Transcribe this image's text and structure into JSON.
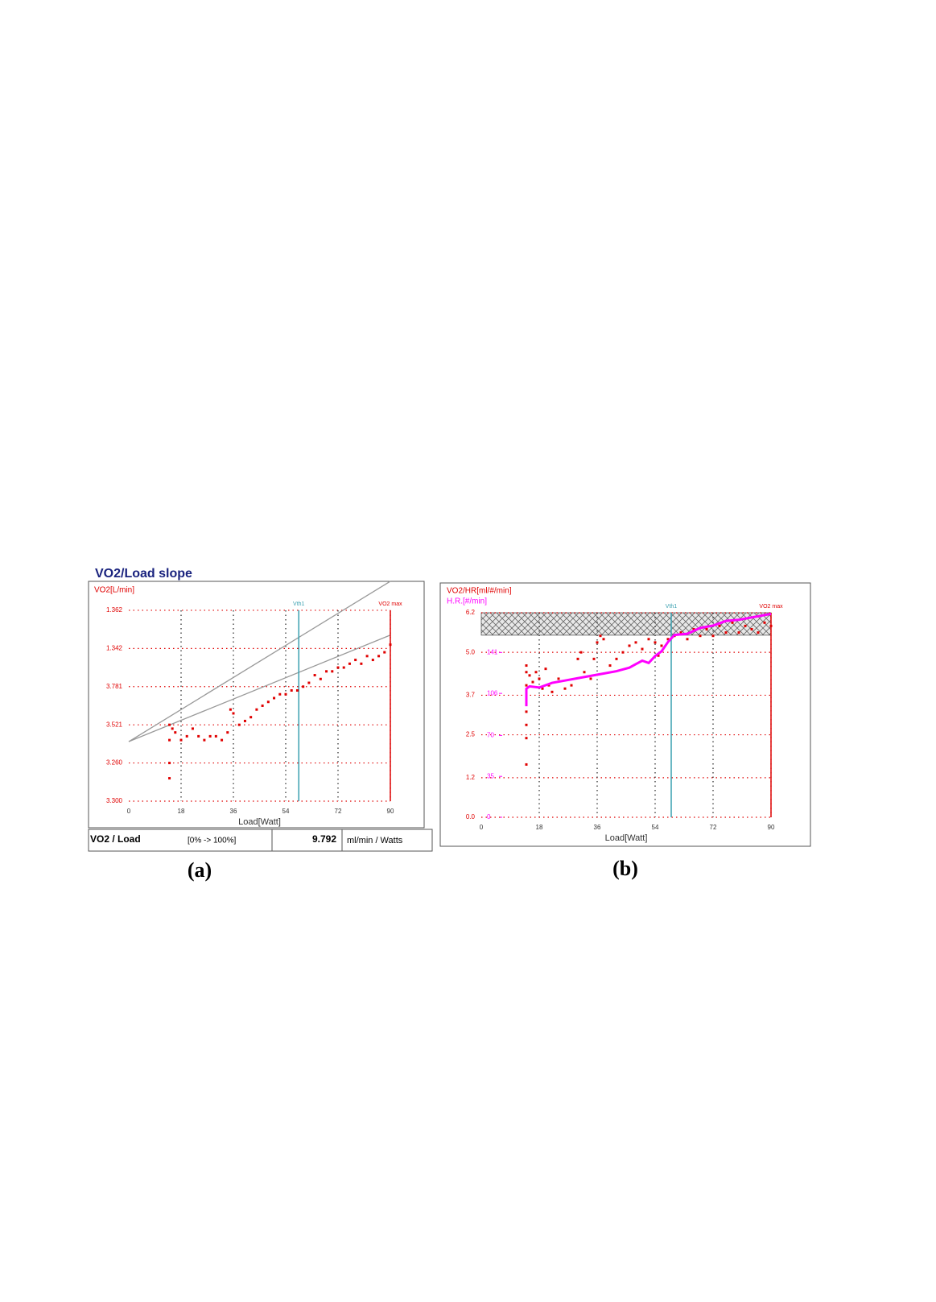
{
  "chart_data": [
    {
      "type": "scatter",
      "title": "VO2/Load slope",
      "y_label": "VO2[L/min]",
      "x_label": "Load[Watt]",
      "caption": "(a)",
      "xlim": [
        0,
        90
      ],
      "xticks": [
        0,
        18,
        36,
        54,
        72,
        90
      ],
      "ylim": [
        0,
        5.8
      ],
      "yticks": [
        {
          "value": 0,
          "label": "3.300"
        },
        {
          "value": 1,
          "label": "3.260"
        },
        {
          "value": 2,
          "label": "3.521"
        },
        {
          "value": 3,
          "label": "3.781"
        },
        {
          "value": 4,
          "label": "1.342"
        },
        {
          "value": 5,
          "label": "1.362"
        }
      ],
      "grid": true,
      "markers": [
        {
          "label": "Vth1",
          "x": 58.5,
          "color": "#3aa0b0"
        },
        {
          "label": "VO2 max",
          "x": 90,
          "color": "#e00000"
        }
      ],
      "reference_lines": [
        {
          "color": "#999999",
          "x": [
            0,
            90
          ],
          "values": [
            1.56,
            5.76
          ]
        },
        {
          "color": "#999999",
          "x": [
            0,
            90
          ],
          "values": [
            1.56,
            4.35
          ]
        }
      ],
      "series": [
        {
          "color": "#e00000",
          "x": [
            14,
            14,
            14,
            14,
            15,
            16,
            18,
            20,
            22,
            24,
            26,
            28,
            30,
            32,
            34,
            35,
            36,
            38,
            40,
            42,
            44,
            46,
            48,
            50,
            52,
            54,
            56,
            58,
            60,
            62,
            64,
            66,
            68,
            70,
            72,
            74,
            76,
            78,
            80,
            82,
            84,
            86,
            88,
            90
          ],
          "values": [
            0.6,
            1.0,
            1.6,
            2.0,
            1.9,
            1.8,
            1.6,
            1.7,
            1.9,
            1.7,
            1.6,
            1.7,
            1.7,
            1.6,
            1.8,
            2.4,
            2.3,
            2.0,
            2.1,
            2.2,
            2.4,
            2.5,
            2.6,
            2.7,
            2.8,
            2.8,
            2.9,
            2.9,
            3.0,
            3.1,
            3.3,
            3.2,
            3.4,
            3.4,
            3.5,
            3.5,
            3.6,
            3.7,
            3.6,
            3.8,
            3.7,
            3.8,
            3.9,
            4.1
          ]
        }
      ],
      "summary": {
        "label": "VO2 / Load",
        "range": "[0% -> 100%]",
        "value": "9.792",
        "unit": "ml/min / Watts"
      }
    },
    {
      "type": "scatter",
      "y_label": "VO2/HR[ml/#/min]",
      "y2_label": "H.R.[#/min]",
      "x_label": "Load[Watt]",
      "caption": "(b)",
      "xlim": [
        0,
        90
      ],
      "xticks": [
        0,
        18,
        36,
        54,
        72,
        90
      ],
      "ylim": [
        0,
        6.2
      ],
      "yticks": [
        {
          "value": 0,
          "label": "0.0"
        },
        1.2,
        2.5,
        3.7,
        {
          "value": 5,
          "label": "5.0"
        },
        6.2
      ],
      "y2lim": [
        0,
        175
      ],
      "y2ticks": [
        0,
        35,
        70,
        106,
        141
      ],
      "grid": true,
      "band": [
        5.52,
        6.2
      ],
      "markers": [
        {
          "label": "Vth1",
          "x": 59,
          "color": "#3aa0b0"
        },
        {
          "label": "VO2 max",
          "x": 90,
          "color": "#e00000"
        }
      ],
      "series": [
        {
          "color": "#e00000",
          "x": [
            14,
            14,
            14,
            14,
            14,
            14,
            14,
            14,
            15,
            16,
            17,
            18,
            19,
            20,
            21,
            22,
            24,
            26,
            28,
            30,
            31,
            32,
            34,
            35,
            36,
            37,
            38,
            40,
            42,
            44,
            46,
            48,
            50,
            52,
            54,
            55,
            56,
            58,
            60,
            62,
            64,
            66,
            68,
            70,
            72,
            74,
            76,
            78,
            80,
            82,
            84,
            86,
            88,
            90
          ],
          "values": [
            1.6,
            2.4,
            2.8,
            3.2,
            3.6,
            4.0,
            4.4,
            4.6,
            4.3,
            4.1,
            4.4,
            4.2,
            3.9,
            4.5,
            4.0,
            3.8,
            4.2,
            3.9,
            4.0,
            4.8,
            5.0,
            4.4,
            4.2,
            4.8,
            5.3,
            5.5,
            5.4,
            4.6,
            4.8,
            5.0,
            5.2,
            5.3,
            5.1,
            5.4,
            5.3,
            4.9,
            5.2,
            5.4,
            5.5,
            5.6,
            5.4,
            5.7,
            5.5,
            5.7,
            5.5,
            5.8,
            5.6,
            5.9,
            5.6,
            5.8,
            5.7,
            5.6,
            5.9,
            5.8
          ]
        },
        {
          "type": "line",
          "axis": "y2",
          "color": "#ff00ff",
          "x": [
            14,
            14,
            15,
            18,
            22,
            26,
            30,
            34,
            38,
            42,
            46,
            48,
            50,
            52,
            54,
            56,
            58,
            60,
            64,
            68,
            72,
            76,
            80,
            84,
            88,
            90
          ],
          "values": [
            95,
            110,
            112,
            111,
            115,
            117,
            119,
            121,
            123,
            125,
            128,
            131,
            134,
            132,
            138,
            142,
            150,
            156,
            157,
            162,
            164,
            168,
            169,
            171,
            173,
            174
          ]
        }
      ]
    }
  ]
}
